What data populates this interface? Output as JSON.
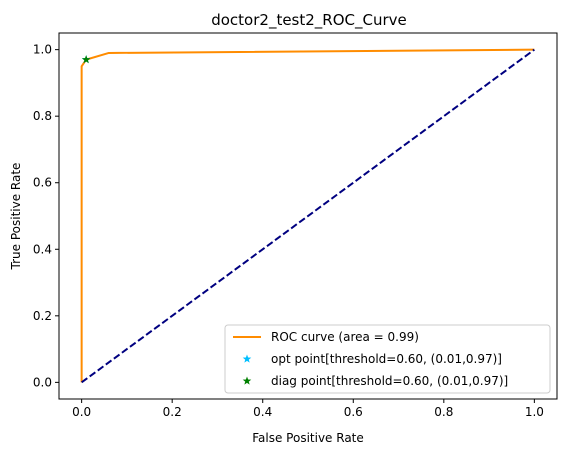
{
  "chart_data": {
    "type": "line",
    "title": "doctor2_test2_ROC_Curve",
    "xlabel": "False Positive Rate",
    "ylabel": "True Positive Rate",
    "xlim": [
      -0.05,
      1.05
    ],
    "ylim": [
      -0.05,
      1.05
    ],
    "xticks": [
      0.0,
      0.2,
      0.4,
      0.6,
      0.8,
      1.0
    ],
    "yticks": [
      0.0,
      0.2,
      0.4,
      0.6,
      0.8,
      1.0
    ],
    "xtick_labels": [
      "0.0",
      "0.2",
      "0.4",
      "0.6",
      "0.8",
      "1.0"
    ],
    "ytick_labels": [
      "0.0",
      "0.2",
      "0.4",
      "0.6",
      "0.8",
      "1.0"
    ],
    "grid": false,
    "legend_position": "lower-right",
    "series": [
      {
        "name": "ROC curve (area = 0.99)",
        "kind": "line",
        "color": "#ff8c00",
        "x": [
          0.0,
          0.0,
          0.0,
          0.0,
          0.005,
          0.01,
          0.06,
          1.0
        ],
        "y": [
          0.0,
          0.5,
          0.92,
          0.95,
          0.96,
          0.97,
          0.99,
          1.0
        ]
      },
      {
        "name": "",
        "kind": "dashed-line",
        "color": "#000080",
        "x": [
          0.0,
          1.0
        ],
        "y": [
          0.0,
          1.0
        ]
      },
      {
        "name": "opt point[threshold=0.60, (0.01,0.97)]",
        "kind": "star-marker",
        "color": "#00bfff",
        "x": [
          0.01
        ],
        "y": [
          0.97
        ]
      },
      {
        "name": "diag point[threshold=0.60, (0.01,0.97)]",
        "kind": "star-marker",
        "color": "#008000",
        "x": [
          0.01
        ],
        "y": [
          0.97
        ]
      }
    ]
  }
}
